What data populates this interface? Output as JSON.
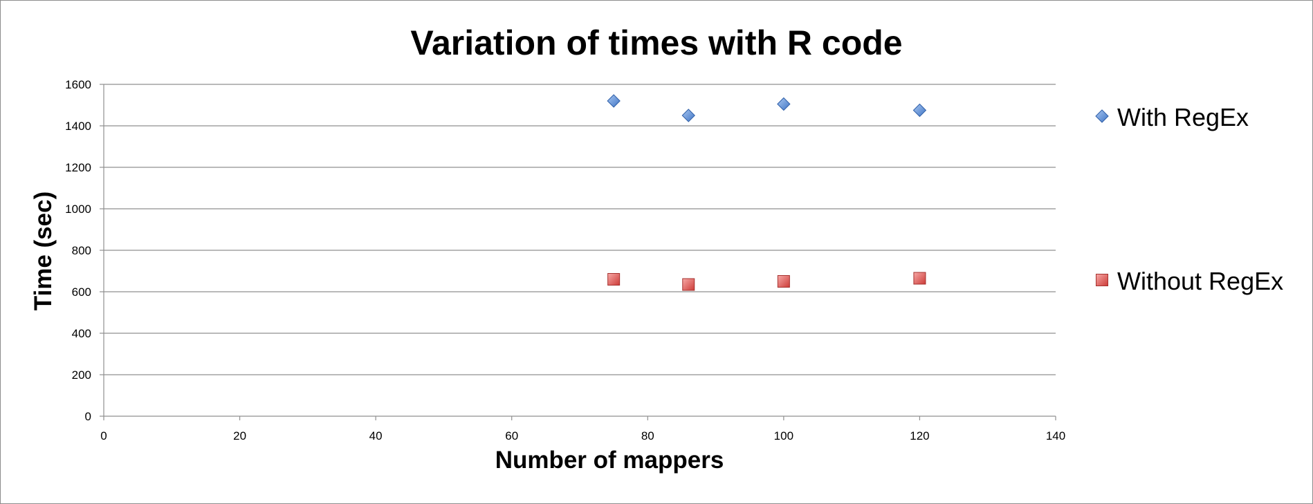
{
  "chart_data": {
    "type": "scatter",
    "title": "Variation of times with R code",
    "xlabel": "Number of mappers",
    "ylabel": "Time (sec)",
    "xlim": [
      0,
      140
    ],
    "ylim": [
      0,
      1600
    ],
    "xticks": [
      0,
      20,
      40,
      60,
      80,
      100,
      120,
      140
    ],
    "yticks": [
      0,
      200,
      400,
      600,
      800,
      1000,
      1200,
      1400,
      1600
    ],
    "grid": "horizontal",
    "legend_position": "right",
    "series": [
      {
        "name": "With RegEx",
        "marker": "diamond",
        "color": "#5b8ed6",
        "x": [
          75,
          86,
          100,
          120
        ],
        "y": [
          1520,
          1450,
          1505,
          1475
        ]
      },
      {
        "name": "Without RegEx",
        "marker": "square",
        "color": "#e05a57",
        "x": [
          75,
          86,
          100,
          120
        ],
        "y": [
          660,
          635,
          650,
          665
        ]
      }
    ]
  }
}
